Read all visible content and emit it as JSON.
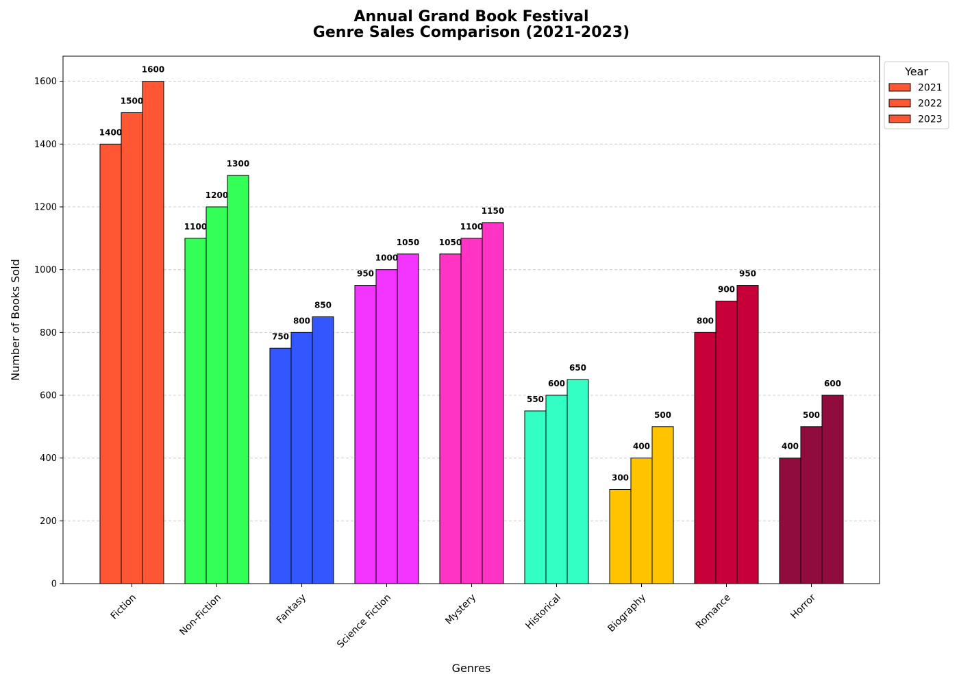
{
  "chart_data": {
    "type": "bar",
    "title": [
      "Annual Grand Book Festival",
      "Genre Sales Comparison (2021-2023)"
    ],
    "xlabel": "Genres",
    "ylabel": "Number of Books Sold",
    "ylim": [
      0,
      1680
    ],
    "yticks": [
      0,
      200,
      400,
      600,
      800,
      1000,
      1200,
      1400,
      1600
    ],
    "grid": "y-dashed",
    "legend_title": "Year",
    "legend_position": "outside-top-right",
    "categories": [
      "Fiction",
      "Non-Fiction",
      "Fantasy",
      "Science Fiction",
      "Mystery",
      "Historical",
      "Biography",
      "Romance",
      "Horror"
    ],
    "category_colors": [
      "#FF5733",
      "#33FF57",
      "#3357FF",
      "#F333FF",
      "#FF33C4",
      "#33FFC4",
      "#FFC300",
      "#C70039",
      "#900C3F"
    ],
    "series": [
      {
        "name": "2021",
        "values": [
          1400,
          1100,
          750,
          950,
          1050,
          550,
          300,
          800,
          400
        ]
      },
      {
        "name": "2022",
        "values": [
          1500,
          1200,
          800,
          1000,
          1100,
          600,
          400,
          900,
          500
        ]
      },
      {
        "name": "2023",
        "values": [
          1600,
          1300,
          850,
          1050,
          1150,
          650,
          500,
          950,
          600
        ]
      }
    ]
  }
}
